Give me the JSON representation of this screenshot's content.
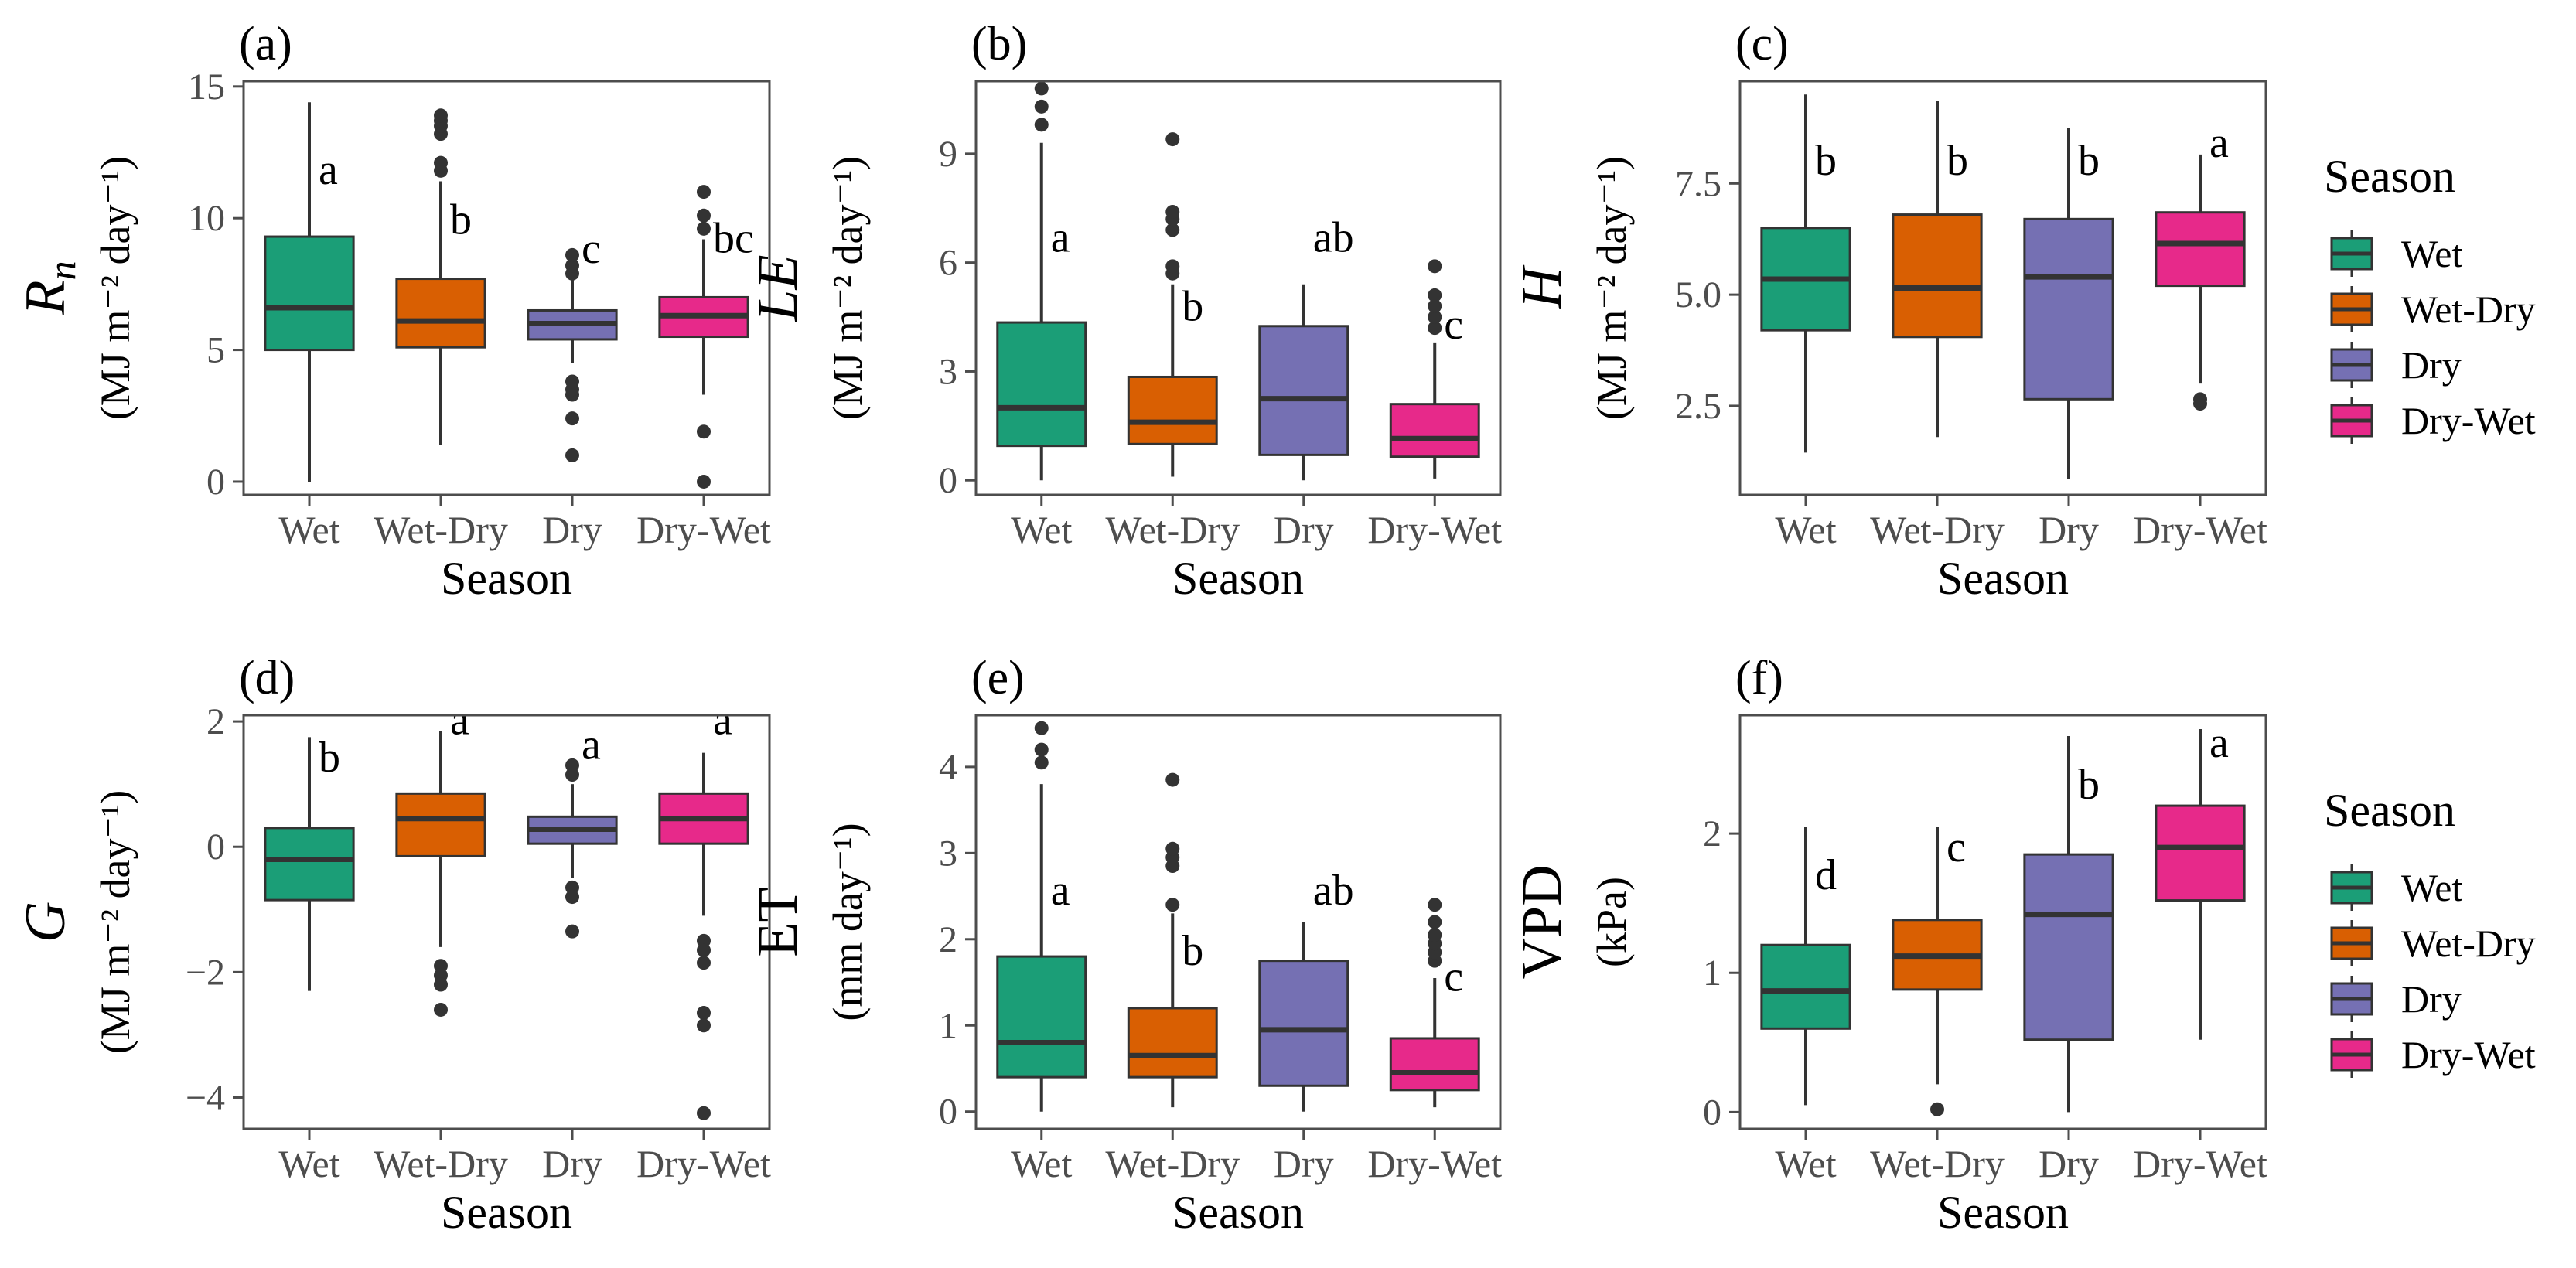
{
  "chart_data": [
    {
      "panel": "(a)",
      "type": "boxplot",
      "ylabel_main": "R",
      "ylabel_sub": "n",
      "ylabel_main_italic": true,
      "ylabel_unit": "(MJ m⁻² day⁻¹)",
      "xlabel": "Season",
      "categories": [
        "Wet",
        "Wet-Dry",
        "Dry",
        "Dry-Wet"
      ],
      "yticks": [
        0,
        5,
        10,
        15
      ],
      "ytick_labels": [
        "0",
        "5",
        "10",
        "15"
      ],
      "ylim": [
        -0.5,
        15.2
      ],
      "boxes": [
        {
          "min": 0,
          "q1": 5.0,
          "median": 6.6,
          "q3": 9.3,
          "max": 14.4,
          "outliers": []
        },
        {
          "min": 1.4,
          "q1": 5.1,
          "median": 6.1,
          "q3": 7.7,
          "max": 11.4,
          "outliers": [
            11.8,
            12.1,
            13.2,
            13.5,
            13.7,
            13.9
          ]
        },
        {
          "min": 4.5,
          "q1": 5.4,
          "median": 6.0,
          "q3": 6.5,
          "max": 8.4,
          "outliers": [
            1.0,
            2.4,
            3.3,
            3.5,
            3.8,
            7.9,
            8.2,
            8.6
          ]
        },
        {
          "min": 3.3,
          "q1": 5.5,
          "median": 6.3,
          "q3": 7.0,
          "max": 9.2,
          "outliers": [
            0.0,
            1.9,
            9.6,
            10.1,
            11.0
          ]
        }
      ],
      "letters": [
        "a",
        "b",
        "c",
        "bc"
      ],
      "letter_values": [
        11.3,
        9.4,
        8.3,
        8.7
      ]
    },
    {
      "panel": "(b)",
      "type": "boxplot",
      "ylabel_main": "LE",
      "ylabel_sub": "",
      "ylabel_main_italic": true,
      "ylabel_unit": "(MJ m⁻² day⁻¹)",
      "xlabel": "Season",
      "categories": [
        "Wet",
        "Wet-Dry",
        "Dry",
        "Dry-Wet"
      ],
      "yticks": [
        0,
        3,
        6,
        9
      ],
      "ytick_labels": [
        "0",
        "3",
        "6",
        "9"
      ],
      "ylim": [
        -0.4,
        11.0
      ],
      "boxes": [
        {
          "min": 0,
          "q1": 0.95,
          "median": 2.0,
          "q3": 4.35,
          "max": 9.3,
          "outliers": [
            9.8,
            10.3,
            10.8
          ]
        },
        {
          "min": 0.1,
          "q1": 1.0,
          "median": 1.6,
          "q3": 2.85,
          "max": 5.4,
          "outliers": [
            5.7,
            5.9,
            6.9,
            7.2,
            7.4,
            9.4
          ]
        },
        {
          "min": 0,
          "q1": 0.7,
          "median": 2.25,
          "q3": 4.25,
          "max": 5.4,
          "outliers": []
        },
        {
          "min": 0.05,
          "q1": 0.65,
          "median": 1.15,
          "q3": 2.1,
          "max": 3.8,
          "outliers": [
            4.2,
            4.5,
            4.8,
            5.1,
            5.9
          ]
        }
      ],
      "letters": [
        "a",
        "b",
        "ab",
        "c"
      ],
      "letter_values": [
        6.3,
        4.4,
        6.3,
        3.9
      ]
    },
    {
      "panel": "(c)",
      "type": "boxplot",
      "ylabel_main": "H",
      "ylabel_sub": "",
      "ylabel_main_italic": true,
      "ylabel_unit": "(MJ m⁻² day⁻¹)",
      "xlabel": "Season",
      "categories": [
        "Wet",
        "Wet-Dry",
        "Dry",
        "Dry-Wet"
      ],
      "yticks": [
        2.5,
        5.0,
        7.5
      ],
      "ytick_labels": [
        "2.5",
        "5.0",
        "7.5"
      ],
      "ylim": [
        0.5,
        9.8
      ],
      "boxes": [
        {
          "min": 1.45,
          "q1": 4.2,
          "median": 5.35,
          "q3": 6.5,
          "max": 9.5,
          "outliers": []
        },
        {
          "min": 1.8,
          "q1": 4.05,
          "median": 5.15,
          "q3": 6.8,
          "max": 9.35,
          "outliers": []
        },
        {
          "min": 0.85,
          "q1": 2.65,
          "median": 5.4,
          "q3": 6.7,
          "max": 8.75,
          "outliers": []
        },
        {
          "min": 3.0,
          "q1": 5.2,
          "median": 6.15,
          "q3": 6.85,
          "max": 8.15,
          "outliers": [
            2.55,
            2.65
          ]
        }
      ],
      "letters": [
        "b",
        "b",
        "b",
        "a"
      ],
      "letter_values": [
        7.7,
        7.7,
        7.7,
        8.1
      ]
    },
    {
      "panel": "(d)",
      "type": "boxplot",
      "ylabel_main": "G",
      "ylabel_sub": "",
      "ylabel_main_italic": true,
      "ylabel_unit": "(MJ m⁻² day⁻¹)",
      "xlabel": "Season",
      "categories": [
        "Wet",
        "Wet-Dry",
        "Dry",
        "Dry-Wet"
      ],
      "yticks": [
        -4,
        -2,
        0,
        2
      ],
      "ytick_labels": [
        "−4",
        "−2",
        "0",
        "2"
      ],
      "ylim": [
        -4.5,
        2.1
      ],
      "boxes": [
        {
          "min": -2.3,
          "q1": -0.85,
          "median": -0.2,
          "q3": 0.3,
          "max": 1.75,
          "outliers": []
        },
        {
          "min": -1.6,
          "q1": -0.15,
          "median": 0.45,
          "q3": 0.85,
          "max": 1.85,
          "outliers": [
            -1.9,
            -2.05,
            -2.2,
            -2.6
          ]
        },
        {
          "min": -0.5,
          "q1": 0.05,
          "median": 0.28,
          "q3": 0.48,
          "max": 1.0,
          "outliers": [
            -0.65,
            -0.8,
            -1.35,
            1.15,
            1.3
          ]
        },
        {
          "min": -1.1,
          "q1": 0.05,
          "median": 0.45,
          "q3": 0.85,
          "max": 1.5,
          "outliers": [
            -1.5,
            -1.65,
            -1.85,
            -2.65,
            -2.85,
            -4.25
          ]
        }
      ],
      "letters": [
        "b",
        "a",
        "a",
        "a"
      ],
      "letter_values": [
        1.2,
        1.8,
        1.4,
        1.8
      ]
    },
    {
      "panel": "(e)",
      "type": "boxplot",
      "ylabel_main": "ET",
      "ylabel_sub": "",
      "ylabel_main_italic": false,
      "ylabel_unit": "(mm day⁻¹)",
      "xlabel": "Season",
      "categories": [
        "Wet",
        "Wet-Dry",
        "Dry",
        "Dry-Wet"
      ],
      "yticks": [
        0,
        1,
        2,
        3,
        4
      ],
      "ytick_labels": [
        "0",
        "1",
        "2",
        "3",
        "4"
      ],
      "ylim": [
        -0.2,
        4.6
      ],
      "boxes": [
        {
          "min": 0,
          "q1": 0.4,
          "median": 0.8,
          "q3": 1.8,
          "max": 3.8,
          "outliers": [
            4.05,
            4.2,
            4.45
          ]
        },
        {
          "min": 0.05,
          "q1": 0.4,
          "median": 0.65,
          "q3": 1.2,
          "max": 2.3,
          "outliers": [
            2.4,
            2.85,
            2.95,
            3.05,
            3.85
          ]
        },
        {
          "min": 0,
          "q1": 0.3,
          "median": 0.95,
          "q3": 1.75,
          "max": 2.2,
          "outliers": []
        },
        {
          "min": 0.05,
          "q1": 0.25,
          "median": 0.45,
          "q3": 0.85,
          "max": 1.55,
          "outliers": [
            1.75,
            1.85,
            1.95,
            2.05,
            2.2,
            2.4
          ]
        }
      ],
      "letters": [
        "a",
        "b",
        "ab",
        "c"
      ],
      "letter_values": [
        2.4,
        1.7,
        2.4,
        1.4
      ]
    },
    {
      "panel": "(f)",
      "type": "boxplot",
      "ylabel_main": "VPD",
      "ylabel_sub": "",
      "ylabel_main_italic": false,
      "ylabel_unit": "(kPa)",
      "xlabel": "Season",
      "categories": [
        "Wet",
        "Wet-Dry",
        "Dry",
        "Dry-Wet"
      ],
      "yticks": [
        0,
        1,
        2
      ],
      "ytick_labels": [
        "0",
        "1",
        "2"
      ],
      "ylim": [
        -0.12,
        2.85
      ],
      "boxes": [
        {
          "min": 0.05,
          "q1": 0.6,
          "median": 0.87,
          "q3": 1.2,
          "max": 2.05,
          "outliers": []
        },
        {
          "min": 0.2,
          "q1": 0.88,
          "median": 1.12,
          "q3": 1.38,
          "max": 2.05,
          "outliers": [
            0.02
          ]
        },
        {
          "min": 0.0,
          "q1": 0.52,
          "median": 1.42,
          "q3": 1.85,
          "max": 2.7,
          "outliers": []
        },
        {
          "min": 0.52,
          "q1": 1.52,
          "median": 1.9,
          "q3": 2.2,
          "max": 2.75,
          "outliers": []
        }
      ],
      "letters": [
        "d",
        "c",
        "b",
        "a"
      ],
      "letter_values": [
        1.6,
        1.8,
        2.25,
        2.55
      ]
    }
  ],
  "legends": [
    {
      "title": "Season",
      "items": [
        "Wet",
        "Wet-Dry",
        "Dry",
        "Dry-Wet"
      ]
    },
    {
      "title": "Season",
      "items": [
        "Wet",
        "Wet-Dry",
        "Dry",
        "Dry-Wet"
      ]
    }
  ],
  "colors": {
    "Wet": "#1b9e77",
    "Wet-Dry": "#d95f02",
    "Dry": "#7570b3",
    "Dry-Wet": "#e7298a",
    "axis": "#4d4d4d",
    "line": "#333333"
  }
}
